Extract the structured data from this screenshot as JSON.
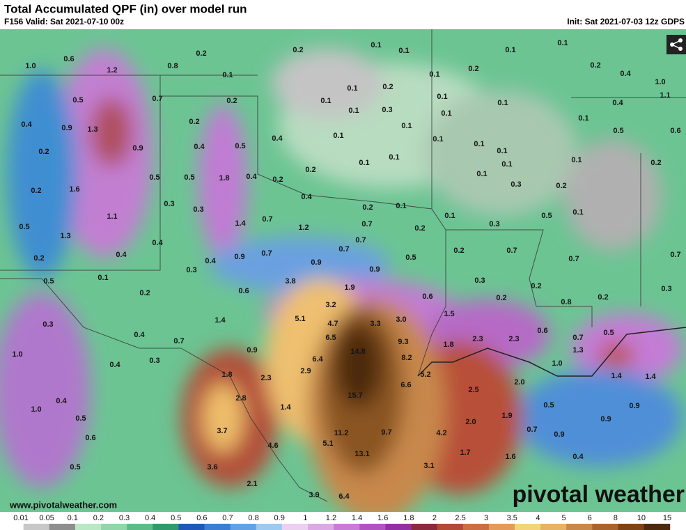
{
  "header": {
    "title": "Total Accumulated QPF (in) over model run",
    "valid": "F156 Valid: Sat 2021-07-10 00z",
    "init": "Init: Sat 2021-07-03 12z GDPS"
  },
  "footer": {
    "website": "www.pivotalweather.com",
    "logo": "pivotal weather"
  },
  "map_labels": [
    "0.6",
    "1.0",
    "1.2",
    "0.8",
    "0.2",
    "0.1",
    "0.2",
    "0.1",
    "0.1",
    "0.1",
    "0.1",
    "0.2",
    "0.1",
    "0.2",
    "0.4",
    "1.0",
    "1.1",
    "0.5",
    "0.7",
    "0.2",
    "0.1",
    "0.2",
    "0.1",
    "0.1",
    "0.1",
    "0.3",
    "0.1",
    "0.1",
    "0.4",
    "0.4",
    "0.9",
    "1.3",
    "0.2",
    "0.1",
    "0.1",
    "0.1",
    "0.1",
    "0.1",
    "0.5",
    "0.6",
    "0.9",
    "0.4",
    "0.5",
    "0.4",
    "0.2",
    "0.1",
    "0.1",
    "0.1",
    "0.2",
    "0.1",
    "0.1",
    "0.1",
    "0.2",
    "0.2",
    "1.6",
    "0.5",
    "0.5",
    "1.8",
    "0.4",
    "0.2",
    "0.3",
    "0.2",
    "0.4",
    "0.3",
    "0.3",
    "0.2",
    "0.1",
    "0.5",
    "1.1",
    "1.4",
    "0.7",
    "1.2",
    "0.7",
    "0.2",
    "0.1",
    "0.3",
    "0.5",
    "0.1",
    "1.3",
    "0.7",
    "0.4",
    "0.4",
    "0.2",
    "0.7",
    "0.2",
    "0.7",
    "0.4",
    "0.9",
    "0.7",
    "0.9",
    "0.5",
    "0.7",
    "0.7",
    "0.3",
    "0.9",
    "0.5",
    "0.1",
    "3.8",
    "1.9",
    "0.3",
    "0.2",
    "0.3",
    "0.2",
    "0.6",
    "0.6",
    "0.2",
    "0.2",
    "0.8",
    "3.2",
    "0.3",
    "1.4",
    "5.1",
    "4.7",
    "3.3",
    "3.0",
    "1.5",
    "0.6",
    "0.5",
    "0.4",
    "6.5",
    "0.7",
    "9.3",
    "1.8",
    "2.3",
    "2.3",
    "0.7",
    "1.3",
    "1.0",
    "0.4",
    "0.3",
    "0.9",
    "14.8",
    "6.4",
    "8.2",
    "2.9",
    "1.8",
    "2.3",
    "5.2",
    "1.0",
    "2.0",
    "1.4",
    "1.4",
    "6.6",
    "2.5",
    "0.4",
    "2.8",
    "15.7",
    "1.4",
    "1.0",
    "0.5",
    "0.9",
    "1.9",
    "0.5",
    "0.9",
    "2.0",
    "3.7",
    "0.7",
    "0.9",
    "9.7",
    "4.2",
    "11.2",
    "0.6",
    "4.6",
    "5.1",
    "13.1",
    "1.7",
    "1.6",
    "0.4",
    "0.5",
    "3.6",
    "3.1",
    "2.1",
    "3.9",
    "6.4"
  ],
  "colorbar": {
    "labels": [
      "0.01",
      "0.05",
      "0.1",
      "0.2",
      "0.3",
      "0.4",
      "0.5",
      "0.6",
      "0.7",
      "0.8",
      "0.9",
      "1",
      "1.2",
      "1.4",
      "1.6",
      "1.8",
      "2",
      "2.5",
      "3",
      "3.5",
      "4",
      "5",
      "6",
      "8",
      "10",
      "15"
    ],
    "colors": [
      "#ffffff",
      "#c8c8c8",
      "#8e8e8e",
      "#b8e8c4",
      "#90d6a8",
      "#5cbc88",
      "#2f9a6c",
      "#1f58b8",
      "#3c7ed2",
      "#62a2e4",
      "#9ccaf0",
      "#ecd0f0",
      "#dca8e6",
      "#c87cd6",
      "#b054c2",
      "#9430a6",
      "#8a2a3c",
      "#b24a36",
      "#cc6e44",
      "#e49a58",
      "#f4d478",
      "#e6b264",
      "#c8884a",
      "#a8642c",
      "#7e4416",
      "#4e2a0c"
    ]
  }
}
